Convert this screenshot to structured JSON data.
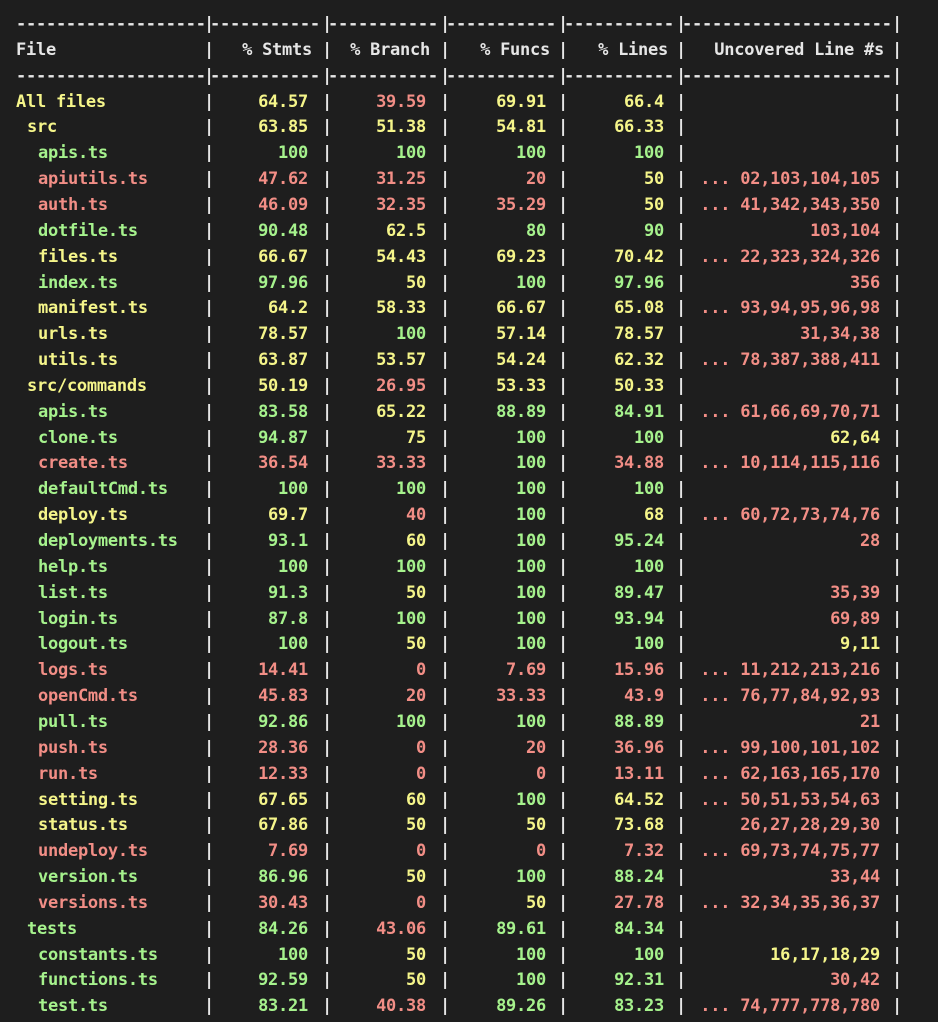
{
  "colors": {
    "background": "#1e1e1e",
    "text": "#e6e6e6",
    "green": "#a6f28d",
    "yellow": "#f5f58a",
    "red": "#f28e86"
  },
  "table": {
    "headers": [
      "File",
      "% Stmts",
      "% Branch",
      "% Funcs",
      "% Lines",
      "Uncovered Line #s"
    ],
    "rows": [
      {
        "file": "All files",
        "indent": 0,
        "color": "yellow",
        "stmts": "64.57",
        "stmts_c": "yellow",
        "branch": "39.59",
        "branch_c": "red",
        "funcs": "69.91",
        "funcs_c": "yellow",
        "lines": "66.4",
        "lines_c": "yellow",
        "uncovered": "",
        "uncovered_c": "white"
      },
      {
        "file": "src",
        "indent": 1,
        "color": "yellow",
        "stmts": "63.85",
        "stmts_c": "yellow",
        "branch": "51.38",
        "branch_c": "yellow",
        "funcs": "54.81",
        "funcs_c": "yellow",
        "lines": "66.33",
        "lines_c": "yellow",
        "uncovered": "",
        "uncovered_c": "white"
      },
      {
        "file": "apis.ts",
        "indent": 2,
        "color": "green",
        "stmts": "100",
        "stmts_c": "green",
        "branch": "100",
        "branch_c": "green",
        "funcs": "100",
        "funcs_c": "green",
        "lines": "100",
        "lines_c": "green",
        "uncovered": "",
        "uncovered_c": "green"
      },
      {
        "file": "apiutils.ts",
        "indent": 2,
        "color": "red",
        "stmts": "47.62",
        "stmts_c": "red",
        "branch": "31.25",
        "branch_c": "red",
        "funcs": "20",
        "funcs_c": "red",
        "lines": "50",
        "lines_c": "yellow",
        "uncovered": "... 02,103,104,105",
        "uncovered_c": "red"
      },
      {
        "file": "auth.ts",
        "indent": 2,
        "color": "red",
        "stmts": "46.09",
        "stmts_c": "red",
        "branch": "32.35",
        "branch_c": "red",
        "funcs": "35.29",
        "funcs_c": "red",
        "lines": "50",
        "lines_c": "yellow",
        "uncovered": "... 41,342,343,350",
        "uncovered_c": "red"
      },
      {
        "file": "dotfile.ts",
        "indent": 2,
        "color": "green",
        "stmts": "90.48",
        "stmts_c": "green",
        "branch": "62.5",
        "branch_c": "yellow",
        "funcs": "80",
        "funcs_c": "green",
        "lines": "90",
        "lines_c": "green",
        "uncovered": "103,104",
        "uncovered_c": "red"
      },
      {
        "file": "files.ts",
        "indent": 2,
        "color": "yellow",
        "stmts": "66.67",
        "stmts_c": "yellow",
        "branch": "54.43",
        "branch_c": "yellow",
        "funcs": "69.23",
        "funcs_c": "yellow",
        "lines": "70.42",
        "lines_c": "yellow",
        "uncovered": "... 22,323,324,326",
        "uncovered_c": "red"
      },
      {
        "file": "index.ts",
        "indent": 2,
        "color": "green",
        "stmts": "97.96",
        "stmts_c": "green",
        "branch": "50",
        "branch_c": "yellow",
        "funcs": "100",
        "funcs_c": "green",
        "lines": "97.96",
        "lines_c": "green",
        "uncovered": "356",
        "uncovered_c": "red"
      },
      {
        "file": "manifest.ts",
        "indent": 2,
        "color": "yellow",
        "stmts": "64.2",
        "stmts_c": "yellow",
        "branch": "58.33",
        "branch_c": "yellow",
        "funcs": "66.67",
        "funcs_c": "yellow",
        "lines": "65.08",
        "lines_c": "yellow",
        "uncovered": "... 93,94,95,96,98",
        "uncovered_c": "red"
      },
      {
        "file": "urls.ts",
        "indent": 2,
        "color": "yellow",
        "stmts": "78.57",
        "stmts_c": "yellow",
        "branch": "100",
        "branch_c": "green",
        "funcs": "57.14",
        "funcs_c": "yellow",
        "lines": "78.57",
        "lines_c": "yellow",
        "uncovered": "31,34,38",
        "uncovered_c": "red"
      },
      {
        "file": "utils.ts",
        "indent": 2,
        "color": "yellow",
        "stmts": "63.87",
        "stmts_c": "yellow",
        "branch": "53.57",
        "branch_c": "yellow",
        "funcs": "54.24",
        "funcs_c": "yellow",
        "lines": "62.32",
        "lines_c": "yellow",
        "uncovered": "... 78,387,388,411",
        "uncovered_c": "red"
      },
      {
        "file": "src/commands",
        "indent": 1,
        "color": "yellow",
        "stmts": "50.19",
        "stmts_c": "yellow",
        "branch": "26.95",
        "branch_c": "red",
        "funcs": "53.33",
        "funcs_c": "yellow",
        "lines": "50.33",
        "lines_c": "yellow",
        "uncovered": "",
        "uncovered_c": "white"
      },
      {
        "file": "apis.ts",
        "indent": 2,
        "color": "green",
        "stmts": "83.58",
        "stmts_c": "green",
        "branch": "65.22",
        "branch_c": "yellow",
        "funcs": "88.89",
        "funcs_c": "green",
        "lines": "84.91",
        "lines_c": "green",
        "uncovered": "... 61,66,69,70,71",
        "uncovered_c": "red"
      },
      {
        "file": "clone.ts",
        "indent": 2,
        "color": "green",
        "stmts": "94.87",
        "stmts_c": "green",
        "branch": "75",
        "branch_c": "yellow",
        "funcs": "100",
        "funcs_c": "green",
        "lines": "100",
        "lines_c": "green",
        "uncovered": "62,64",
        "uncovered_c": "yellow"
      },
      {
        "file": "create.ts",
        "indent": 2,
        "color": "red",
        "stmts": "36.54",
        "stmts_c": "red",
        "branch": "33.33",
        "branch_c": "red",
        "funcs": "100",
        "funcs_c": "green",
        "lines": "34.88",
        "lines_c": "red",
        "uncovered": "... 10,114,115,116",
        "uncovered_c": "red"
      },
      {
        "file": "defaultCmd.ts",
        "indent": 2,
        "color": "green",
        "stmts": "100",
        "stmts_c": "green",
        "branch": "100",
        "branch_c": "green",
        "funcs": "100",
        "funcs_c": "green",
        "lines": "100",
        "lines_c": "green",
        "uncovered": "",
        "uncovered_c": "green"
      },
      {
        "file": "deploy.ts",
        "indent": 2,
        "color": "yellow",
        "stmts": "69.7",
        "stmts_c": "yellow",
        "branch": "40",
        "branch_c": "red",
        "funcs": "100",
        "funcs_c": "green",
        "lines": "68",
        "lines_c": "yellow",
        "uncovered": "... 60,72,73,74,76",
        "uncovered_c": "red"
      },
      {
        "file": "deployments.ts",
        "indent": 2,
        "color": "green",
        "stmts": "93.1",
        "stmts_c": "green",
        "branch": "60",
        "branch_c": "yellow",
        "funcs": "100",
        "funcs_c": "green",
        "lines": "95.24",
        "lines_c": "green",
        "uncovered": "28",
        "uncovered_c": "red"
      },
      {
        "file": "help.ts",
        "indent": 2,
        "color": "green",
        "stmts": "100",
        "stmts_c": "green",
        "branch": "100",
        "branch_c": "green",
        "funcs": "100",
        "funcs_c": "green",
        "lines": "100",
        "lines_c": "green",
        "uncovered": "",
        "uncovered_c": "green"
      },
      {
        "file": "list.ts",
        "indent": 2,
        "color": "green",
        "stmts": "91.3",
        "stmts_c": "green",
        "branch": "50",
        "branch_c": "yellow",
        "funcs": "100",
        "funcs_c": "green",
        "lines": "89.47",
        "lines_c": "green",
        "uncovered": "35,39",
        "uncovered_c": "red"
      },
      {
        "file": "login.ts",
        "indent": 2,
        "color": "green",
        "stmts": "87.8",
        "stmts_c": "green",
        "branch": "100",
        "branch_c": "green",
        "funcs": "100",
        "funcs_c": "green",
        "lines": "93.94",
        "lines_c": "green",
        "uncovered": "69,89",
        "uncovered_c": "red"
      },
      {
        "file": "logout.ts",
        "indent": 2,
        "color": "green",
        "stmts": "100",
        "stmts_c": "green",
        "branch": "50",
        "branch_c": "yellow",
        "funcs": "100",
        "funcs_c": "green",
        "lines": "100",
        "lines_c": "green",
        "uncovered": "9,11",
        "uncovered_c": "yellow"
      },
      {
        "file": "logs.ts",
        "indent": 2,
        "color": "red",
        "stmts": "14.41",
        "stmts_c": "red",
        "branch": "0",
        "branch_c": "red",
        "funcs": "7.69",
        "funcs_c": "red",
        "lines": "15.96",
        "lines_c": "red",
        "uncovered": "... 11,212,213,216",
        "uncovered_c": "red"
      },
      {
        "file": "openCmd.ts",
        "indent": 2,
        "color": "red",
        "stmts": "45.83",
        "stmts_c": "red",
        "branch": "20",
        "branch_c": "red",
        "funcs": "33.33",
        "funcs_c": "red",
        "lines": "43.9",
        "lines_c": "red",
        "uncovered": "... 76,77,84,92,93",
        "uncovered_c": "red"
      },
      {
        "file": "pull.ts",
        "indent": 2,
        "color": "green",
        "stmts": "92.86",
        "stmts_c": "green",
        "branch": "100",
        "branch_c": "green",
        "funcs": "100",
        "funcs_c": "green",
        "lines": "88.89",
        "lines_c": "green",
        "uncovered": "21",
        "uncovered_c": "red"
      },
      {
        "file": "push.ts",
        "indent": 2,
        "color": "red",
        "stmts": "28.36",
        "stmts_c": "red",
        "branch": "0",
        "branch_c": "red",
        "funcs": "20",
        "funcs_c": "red",
        "lines": "36.96",
        "lines_c": "red",
        "uncovered": "... 99,100,101,102",
        "uncovered_c": "red"
      },
      {
        "file": "run.ts",
        "indent": 2,
        "color": "red",
        "stmts": "12.33",
        "stmts_c": "red",
        "branch": "0",
        "branch_c": "red",
        "funcs": "0",
        "funcs_c": "red",
        "lines": "13.11",
        "lines_c": "red",
        "uncovered": "... 62,163,165,170",
        "uncovered_c": "red"
      },
      {
        "file": "setting.ts",
        "indent": 2,
        "color": "yellow",
        "stmts": "67.65",
        "stmts_c": "yellow",
        "branch": "60",
        "branch_c": "yellow",
        "funcs": "100",
        "funcs_c": "green",
        "lines": "64.52",
        "lines_c": "yellow",
        "uncovered": "... 50,51,53,54,63",
        "uncovered_c": "red"
      },
      {
        "file": "status.ts",
        "indent": 2,
        "color": "yellow",
        "stmts": "67.86",
        "stmts_c": "yellow",
        "branch": "50",
        "branch_c": "yellow",
        "funcs": "50",
        "funcs_c": "yellow",
        "lines": "73.68",
        "lines_c": "yellow",
        "uncovered": "26,27,28,29,30",
        "uncovered_c": "red"
      },
      {
        "file": "undeploy.ts",
        "indent": 2,
        "color": "red",
        "stmts": "7.69",
        "stmts_c": "red",
        "branch": "0",
        "branch_c": "red",
        "funcs": "0",
        "funcs_c": "red",
        "lines": "7.32",
        "lines_c": "red",
        "uncovered": "... 69,73,74,75,77",
        "uncovered_c": "red"
      },
      {
        "file": "version.ts",
        "indent": 2,
        "color": "green",
        "stmts": "86.96",
        "stmts_c": "green",
        "branch": "50",
        "branch_c": "yellow",
        "funcs": "100",
        "funcs_c": "green",
        "lines": "88.24",
        "lines_c": "green",
        "uncovered": "33,44",
        "uncovered_c": "red"
      },
      {
        "file": "versions.ts",
        "indent": 2,
        "color": "red",
        "stmts": "30.43",
        "stmts_c": "red",
        "branch": "0",
        "branch_c": "red",
        "funcs": "50",
        "funcs_c": "yellow",
        "lines": "27.78",
        "lines_c": "red",
        "uncovered": "... 32,34,35,36,37",
        "uncovered_c": "red"
      },
      {
        "file": "tests",
        "indent": 1,
        "color": "green",
        "stmts": "84.26",
        "stmts_c": "green",
        "branch": "43.06",
        "branch_c": "red",
        "funcs": "89.61",
        "funcs_c": "green",
        "lines": "84.34",
        "lines_c": "green",
        "uncovered": "",
        "uncovered_c": "white"
      },
      {
        "file": "constants.ts",
        "indent": 2,
        "color": "green",
        "stmts": "100",
        "stmts_c": "green",
        "branch": "50",
        "branch_c": "yellow",
        "funcs": "100",
        "funcs_c": "green",
        "lines": "100",
        "lines_c": "green",
        "uncovered": "16,17,18,29",
        "uncovered_c": "yellow"
      },
      {
        "file": "functions.ts",
        "indent": 2,
        "color": "green",
        "stmts": "92.59",
        "stmts_c": "green",
        "branch": "50",
        "branch_c": "yellow",
        "funcs": "100",
        "funcs_c": "green",
        "lines": "92.31",
        "lines_c": "green",
        "uncovered": "30,42",
        "uncovered_c": "red"
      },
      {
        "file": "test.ts",
        "indent": 2,
        "color": "green",
        "stmts": "83.21",
        "stmts_c": "green",
        "branch": "40.38",
        "branch_c": "red",
        "funcs": "89.26",
        "funcs_c": "green",
        "lines": "83.23",
        "lines_c": "green",
        "uncovered": "... 74,777,778,780",
        "uncovered_c": "red"
      }
    ]
  }
}
